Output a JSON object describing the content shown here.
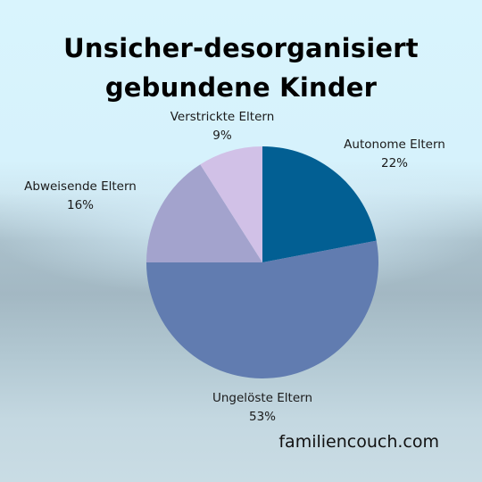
{
  "chart_data": {
    "type": "pie",
    "title": "Unsicher-desorganisiert gebundene Kinder",
    "categories": [
      "Autonome Eltern",
      "Ungelöste Eltern",
      "Abweisende Eltern",
      "Verstrickte Eltern"
    ],
    "values": [
      22,
      53,
      16,
      9
    ],
    "value_labels": [
      "22%",
      "53%",
      "16%",
      "9%"
    ],
    "colors": [
      "#025f93",
      "#617cb0",
      "#a3a3cd",
      "#d1c1e7"
    ]
  },
  "footer": {
    "brand": "familiencouch.com"
  }
}
